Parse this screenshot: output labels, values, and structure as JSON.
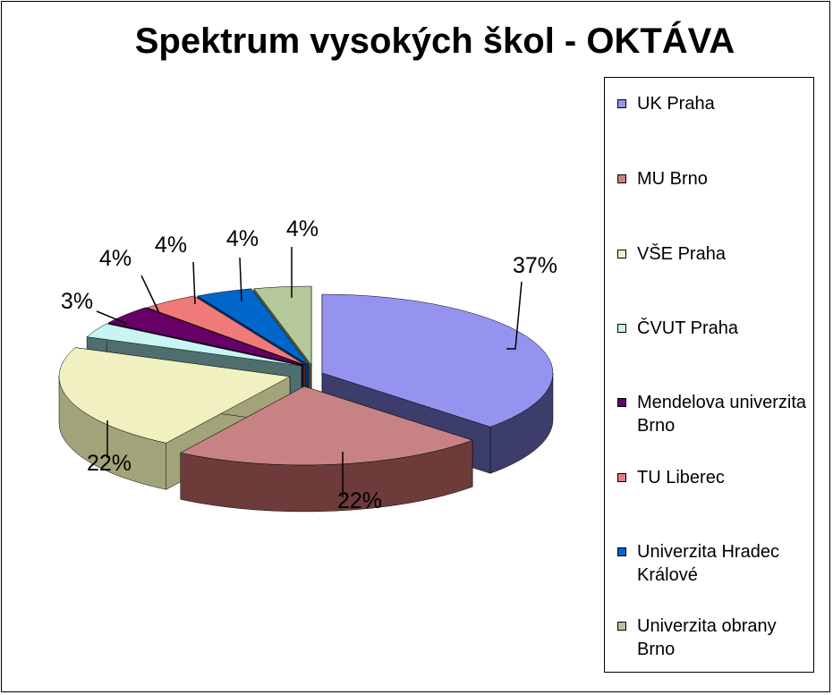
{
  "chart_data": {
    "type": "pie",
    "title": "Spektrum vysokých škol - OKTÁVA",
    "legend_position": "right",
    "slices": [
      {
        "name": "UK Praha",
        "value": 37,
        "label": "37%",
        "color": "#9494F0",
        "side_color": "#3D3D6B"
      },
      {
        "name": "MU Brno",
        "value": 22,
        "label": "22%",
        "color": "#C78383",
        "side_color": "#6E3B3B"
      },
      {
        "name": "VŠE Praha",
        "value": 22,
        "label": "22%",
        "color": "#F0F0C0",
        "side_color": "#A3A37A"
      },
      {
        "name": "ČVUT Praha",
        "value": 3,
        "label": "3%",
        "color": "#C8F4F4",
        "side_color": "#4F6F6F"
      },
      {
        "name": "Mendelova univerzita Brno",
        "value": 4,
        "label": "4%",
        "color": "#660066",
        "side_color": "#2D002D"
      },
      {
        "name": "TU Liberec",
        "value": 4,
        "label": "4%",
        "color": "#F07A7A",
        "side_color": "#7A2E2E"
      },
      {
        "name": "Univerzita Hradec Králové",
        "value": 4,
        "label": "4%",
        "color": "#0066CC",
        "side_color": "#003366"
      },
      {
        "name": "Univerzita obrany Brno",
        "value": 4,
        "label": "4%",
        "color": "#B5C89A",
        "side_color": "#55603F"
      }
    ]
  }
}
